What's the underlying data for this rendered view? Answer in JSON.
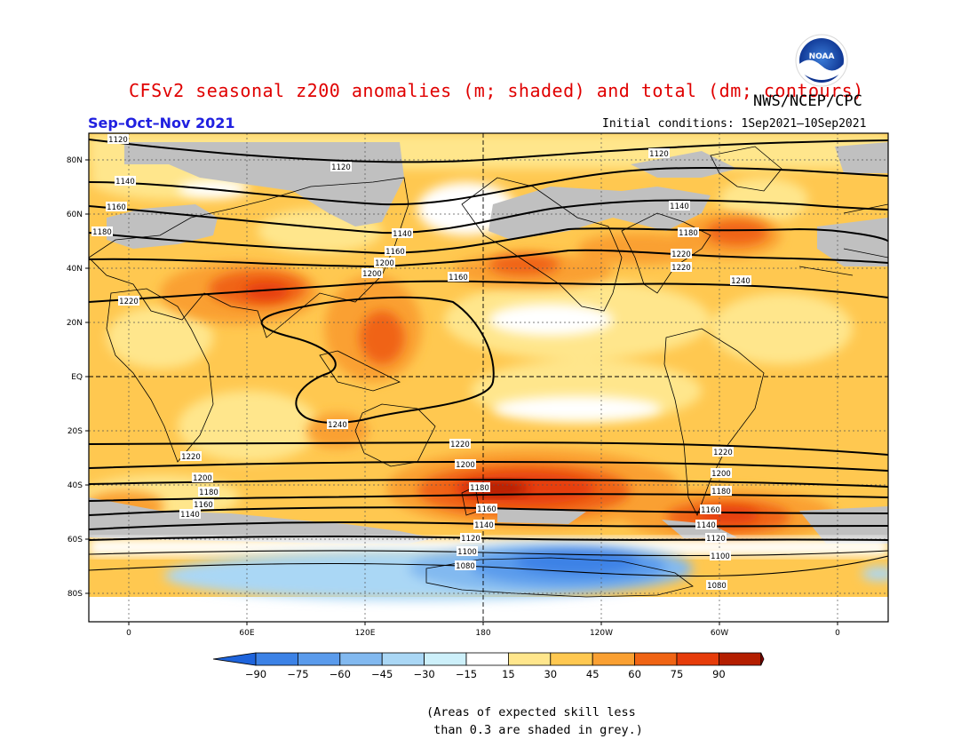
{
  "title": "CFSv2 seasonal z200 anomalies (m; shaded) and total (dm; contours)",
  "agency": "NWS/NCEP/CPC",
  "logo_text": "NOAA",
  "season": "Sep–Oct–Nov 2021",
  "initial_conditions": "Initial conditions: 1Sep2021–10Sep2021",
  "lat_labels": [
    "80N",
    "60N",
    "40N",
    "20N",
    "EQ",
    "20S",
    "40S",
    "60S",
    "80S"
  ],
  "lon_labels": [
    "0",
    "60E",
    "120E",
    "180",
    "120W",
    "60W",
    "0"
  ],
  "colorbar": {
    "ticks": [
      "−90",
      "−75",
      "−60",
      "−45",
      "−30",
      "−15",
      "15",
      "30",
      "45",
      "60",
      "75",
      "90"
    ],
    "colors": [
      "#1e64dc",
      "#3c82e6",
      "#5a9bec",
      "#82b9f0",
      "#aad7f5",
      "#cdf0fa",
      "#ffffff",
      "#ffe68c",
      "#ffc850",
      "#faa032",
      "#f06414",
      "#e63c0a",
      "#b41e00",
      "#8c0000"
    ]
  },
  "contour_labels": {
    "north": [
      "1120",
      "1120",
      "1120",
      "1140",
      "1140",
      "1160",
      "1160",
      "1180",
      "1180",
      "1200",
      "1200",
      "1220",
      "1220",
      "1140",
      "1160",
      "1220",
      "1240"
    ],
    "south": [
      "1240",
      "1220",
      "1220",
      "1220",
      "1200",
      "1200",
      "1200",
      "1180",
      "1180",
      "1180",
      "1160",
      "1160",
      "1160",
      "1140",
      "1140",
      "1140",
      "1120",
      "1120",
      "1100",
      "1100",
      "1080",
      "1080"
    ]
  },
  "skill_note": "(Areas of expected skill less\n than 0.3 are shaded in grey.)"
}
